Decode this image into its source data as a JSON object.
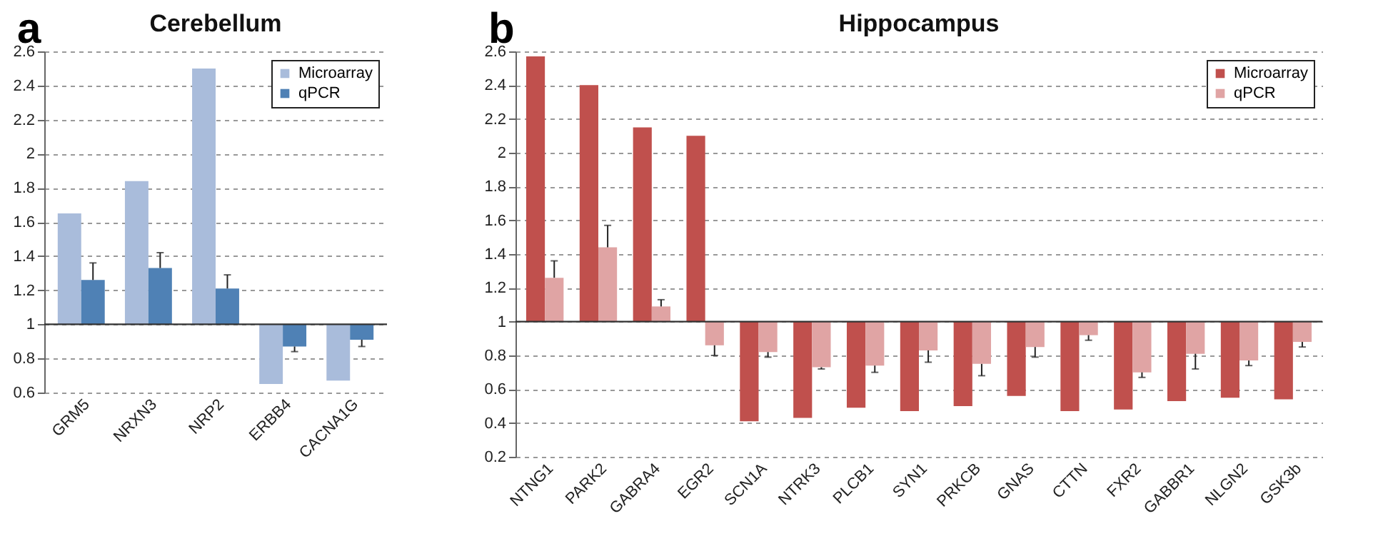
{
  "chart_data": [
    {
      "type": "bar",
      "title": "Cerebellum",
      "annotations": [
        "a"
      ],
      "categories": [
        "GRM5",
        "NRXN3",
        "NRP2",
        "ERBB4",
        "CACNA1G"
      ],
      "series": [
        {
          "name": "Microarray",
          "color": "#a9bcdb",
          "base": [
            1,
            1,
            1,
            1,
            1
          ],
          "values": [
            0.65,
            0.84,
            1.5,
            -0.35,
            -0.33
          ]
        },
        {
          "name": "qPCR",
          "color": "#4f81b5",
          "base": [
            1,
            1,
            1,
            1,
            1
          ],
          "values": [
            0.26,
            0.33,
            0.21,
            -0.13,
            -0.09
          ],
          "errors": [
            [
              1.26,
              1.36
            ],
            [
              1.33,
              1.42
            ],
            [
              1.21,
              1.29
            ],
            [
              0.84,
              0.87
            ],
            [
              0.87,
              0.91
            ]
          ]
        }
      ],
      "ylim": [
        0.6,
        2.6
      ],
      "yticks": [
        0.6,
        0.8,
        1,
        1.2,
        1.4,
        1.6,
        1.8,
        2,
        2.2,
        2.4,
        2.6
      ],
      "grid": "y",
      "legend": "top right",
      "ref_lines": [
        {
          "axis": "y",
          "value": 1
        }
      ]
    },
    {
      "type": "bar",
      "title": "Hippocampus",
      "annotations": [
        "b"
      ],
      "categories": [
        "NTNG1",
        "PARK2",
        "GABRA4",
        "EGR2",
        "SCN1A",
        "NTRK3",
        "PLCB1",
        "SYN1",
        "PRKCB",
        "GNAS",
        "CTTN",
        "FXR2",
        "GABBR1",
        "NLGN2",
        "GSK3b"
      ],
      "series": [
        {
          "name": "Microarray",
          "color": "#c0504d",
          "base": [
            1,
            1,
            1,
            1,
            1,
            1,
            1,
            1,
            1,
            1,
            1,
            1,
            1,
            1,
            1
          ],
          "values": [
            1.57,
            1.4,
            1.15,
            1.1,
            -0.59,
            -0.57,
            -0.51,
            -0.53,
            -0.5,
            -0.44,
            -0.53,
            -0.52,
            -0.47,
            -0.45,
            -0.46
          ]
        },
        {
          "name": "qPCR",
          "color": "#e0a4a4",
          "base": [
            1,
            1,
            1,
            1,
            1,
            1,
            1,
            1,
            1,
            1,
            1,
            1,
            1,
            1,
            1
          ],
          "values": [
            0.26,
            0.44,
            0.09,
            -0.14,
            -0.18,
            -0.27,
            -0.26,
            -0.17,
            -0.25,
            -0.15,
            -0.08,
            -0.3,
            -0.19,
            -0.23,
            -0.12
          ],
          "errors": [
            [
              1.26,
              1.36
            ],
            [
              1.44,
              1.57
            ],
            [
              1.09,
              1.13
            ],
            [
              0.8,
              0.86
            ],
            [
              0.79,
              0.82
            ],
            [
              0.72,
              0.73
            ],
            [
              0.7,
              0.74
            ],
            [
              0.76,
              0.83
            ],
            [
              0.68,
              0.75
            ],
            [
              0.79,
              0.85
            ],
            [
              0.89,
              0.92
            ],
            [
              0.67,
              0.7
            ],
            [
              0.72,
              0.81
            ],
            [
              0.74,
              0.77
            ],
            [
              0.85,
              0.88
            ]
          ]
        }
      ],
      "ylim": [
        0.2,
        2.6
      ],
      "yticks": [
        0.2,
        0.4,
        0.6,
        0.8,
        1,
        1.2,
        1.4,
        1.6,
        1.8,
        2,
        2.2,
        2.4,
        2.6
      ],
      "grid": "y",
      "legend": "top right",
      "ref_lines": [
        {
          "axis": "y",
          "value": 1
        }
      ]
    }
  ]
}
